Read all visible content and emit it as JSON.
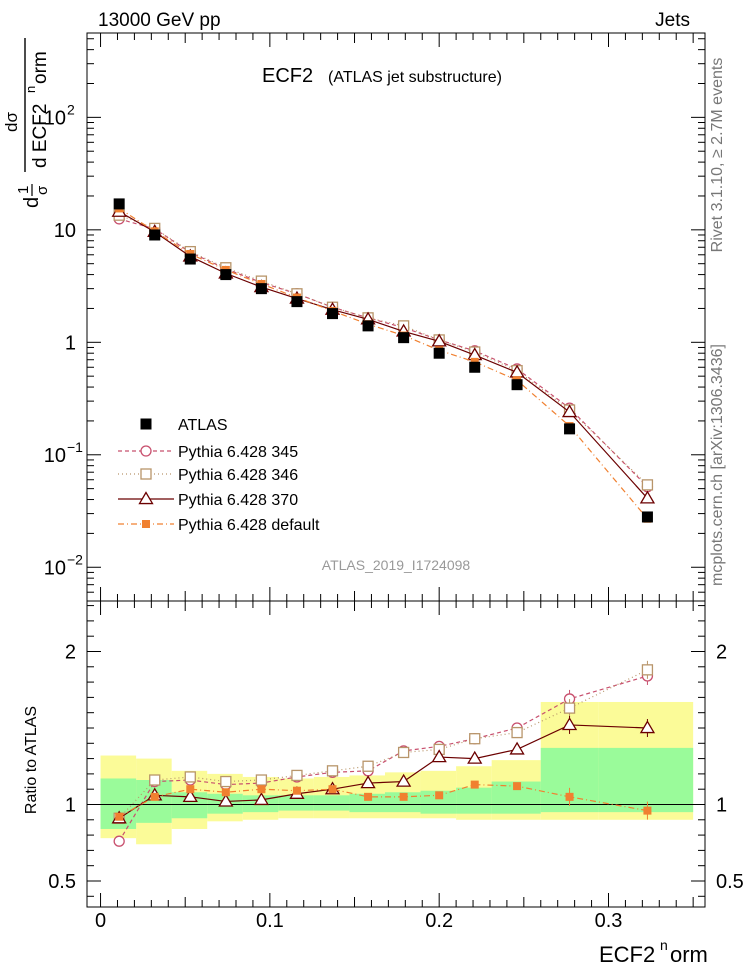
{
  "header": {
    "left": "13000 GeV pp",
    "right": "Jets"
  },
  "side_text": {
    "rivet": "Rivet 3.1.10, ≥ 2.7M events",
    "mcplots": "mcplots.cern.ch [arXiv:1306.3436]"
  },
  "chart_data": [
    {
      "type": "line",
      "panel": "main",
      "title": "ECF2",
      "subtitle": "(ATLAS jet substructure)",
      "watermark": "ATLAS_2019_I1724098",
      "yscale": "log",
      "ylabel": {
        "d1": "d",
        "one": "1",
        "sigma": "σ",
        "d2": "d",
        "num": "dσ",
        "den": "d ECF2",
        "den_sup": "n",
        "den_tail": "orm"
      },
      "xlim": [
        -0.008,
        0.357
      ],
      "ylim_log10": [
        -2.3,
        2.75
      ],
      "yticks": [
        {
          "v": 0.01,
          "base": "10",
          "exp": "−2"
        },
        {
          "v": 0.1,
          "base": "10",
          "exp": "−1"
        },
        {
          "v": 1,
          "base": "1",
          "exp": ""
        },
        {
          "v": 10,
          "base": "10",
          "exp": ""
        },
        {
          "v": 100,
          "base": "10",
          "exp": "2"
        }
      ],
      "x": [
        0.011,
        0.032,
        0.053,
        0.074,
        0.095,
        0.116,
        0.137,
        0.158,
        0.179,
        0.2,
        0.221,
        0.246,
        0.277,
        0.323
      ],
      "bin_edges": [
        0,
        0.021,
        0.042,
        0.063,
        0.084,
        0.105,
        0.126,
        0.147,
        0.168,
        0.189,
        0.21,
        0.231,
        0.26,
        0.294,
        0.35
      ],
      "series": [
        {
          "name": "ATLAS",
          "style": "data",
          "color": "#000000",
          "values": [
            17,
            9,
            5.5,
            4.0,
            3.0,
            2.3,
            1.8,
            1.4,
            1.1,
            0.8,
            0.6,
            0.42,
            0.17,
            0.028
          ]
        },
        {
          "name": "Pythia 6.428 345",
          "style": "circle",
          "color": "#c8506e",
          "values": [
            12.5,
            10.2,
            6.3,
            4.5,
            3.4,
            2.7,
            2.05,
            1.65,
            1.35,
            1.05,
            0.84,
            0.58,
            0.26,
            0.052
          ]
        },
        {
          "name": "Pythia 6.428 346",
          "style": "square",
          "color": "#b8956a",
          "values": [
            13.5,
            10.3,
            6.4,
            4.6,
            3.5,
            2.7,
            2.05,
            1.65,
            1.4,
            1.05,
            0.82,
            0.56,
            0.25,
            0.054
          ]
        },
        {
          "name": "Pythia 6.428 370",
          "style": "triangle",
          "color": "#6b0000",
          "values": [
            14.5,
            9.6,
            5.8,
            4.1,
            3.1,
            2.45,
            1.95,
            1.6,
            1.25,
            1.02,
            0.77,
            0.54,
            0.24,
            0.041
          ]
        },
        {
          "name": "Pythia 6.428 default",
          "style": "filled-square",
          "color": "#f08030",
          "values": [
            15.5,
            9.7,
            6.1,
            4.4,
            3.3,
            2.5,
            1.9,
            1.45,
            1.15,
            0.85,
            0.67,
            0.46,
            0.18,
            0.027
          ]
        }
      ]
    },
    {
      "type": "line",
      "panel": "ratio",
      "ylabel": "Ratio to ATLAS",
      "xlabel": "ECF2",
      "xlabel_sup": "n",
      "xlabel_tail": "orm",
      "xlim": [
        -0.008,
        0.357
      ],
      "ylim": [
        0.33,
        2.33
      ],
      "yticks": [
        0.5,
        1,
        2
      ],
      "xticks": [
        0,
        0.1,
        0.2,
        0.3
      ],
      "x": [
        0.011,
        0.032,
        0.053,
        0.074,
        0.095,
        0.116,
        0.137,
        0.158,
        0.179,
        0.2,
        0.221,
        0.246,
        0.277,
        0.323
      ],
      "bin_edges": [
        0,
        0.021,
        0.042,
        0.063,
        0.084,
        0.105,
        0.126,
        0.147,
        0.168,
        0.189,
        0.21,
        0.231,
        0.26,
        0.294,
        0.35
      ],
      "band_inner": [
        [
          0.84,
          1.17
        ],
        [
          0.88,
          1.16
        ],
        [
          0.91,
          1.08
        ],
        [
          0.94,
          1.07
        ],
        [
          0.95,
          1.06
        ],
        [
          0.96,
          1.06
        ],
        [
          0.96,
          1.06
        ],
        [
          0.95,
          1.07
        ],
        [
          0.95,
          1.08
        ],
        [
          0.94,
          1.09
        ],
        [
          0.94,
          1.11
        ],
        [
          0.94,
          1.15
        ],
        [
          0.95,
          1.37
        ],
        [
          0.95,
          1.37
        ]
      ],
      "band_outer": [
        [
          0.78,
          1.32
        ],
        [
          0.74,
          1.3
        ],
        [
          0.84,
          1.22
        ],
        [
          0.89,
          1.2
        ],
        [
          0.9,
          1.18
        ],
        [
          0.91,
          1.17
        ],
        [
          0.91,
          1.18
        ],
        [
          0.91,
          1.19
        ],
        [
          0.91,
          1.21
        ],
        [
          0.91,
          1.22
        ],
        [
          0.9,
          1.25
        ],
        [
          0.9,
          1.29
        ],
        [
          0.9,
          1.67
        ],
        [
          0.9,
          1.67
        ]
      ],
      "series": [
        {
          "name": "Pythia 6.428 345",
          "style": "circle",
          "color": "#c8506e",
          "values": [
            0.76,
            1.15,
            1.16,
            1.13,
            1.14,
            1.18,
            1.21,
            1.22,
            1.35,
            1.38,
            1.43,
            1.5,
            1.69,
            1.84
          ]
        },
        {
          "name": "Pythia 6.428 346",
          "style": "square",
          "color": "#b8956a",
          "values": [
            0.91,
            1.16,
            1.18,
            1.15,
            1.16,
            1.19,
            1.22,
            1.25,
            1.34,
            1.36,
            1.43,
            1.47,
            1.63,
            1.88
          ]
        },
        {
          "name": "Pythia 6.428 370",
          "style": "triangle",
          "color": "#6b0000",
          "values": [
            0.91,
            1.06,
            1.05,
            1.02,
            1.03,
            1.07,
            1.1,
            1.14,
            1.15,
            1.31,
            1.3,
            1.36,
            1.52,
            1.5
          ]
        },
        {
          "name": "Pythia 6.428 default",
          "style": "filled-square",
          "color": "#f08030",
          "values": [
            0.92,
            1.05,
            1.1,
            1.08,
            1.1,
            1.09,
            1.1,
            1.05,
            1.05,
            1.06,
            1.13,
            1.12,
            1.05,
            0.96
          ]
        }
      ]
    }
  ]
}
